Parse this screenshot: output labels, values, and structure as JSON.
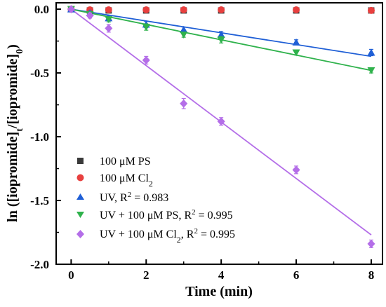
{
  "chart_data": {
    "type": "scatter",
    "xlabel": "Time (min)",
    "ylabel": {
      "prefix": "ln ([iopromide]",
      "sub1": "t",
      "middle": "/[iopromide]",
      "sub2": "0",
      "suffix": ")"
    },
    "xlim": [
      -0.4,
      8.3
    ],
    "ylim": [
      -2.0,
      0.05
    ],
    "x_ticks": [
      "0",
      "2",
      "4",
      "6",
      "8"
    ],
    "y_ticks": [
      "0.0",
      "-0.5",
      "-1.0",
      "-1.5",
      "-2.0"
    ],
    "grid": false,
    "legend_position": "lower-left",
    "series": [
      {
        "name": "100 μM PS",
        "marker": "square",
        "color": "#3a3a3a",
        "x": [
          0,
          0.5,
          1,
          2,
          3,
          4,
          6,
          8
        ],
        "y": [
          0,
          -0.01,
          -0.01,
          -0.01,
          -0.01,
          -0.01,
          -0.01,
          -0.01
        ],
        "errors": [
          0,
          0.005,
          0.005,
          0.005,
          0.005,
          0.005,
          0.005,
          0.005
        ],
        "fit": null
      },
      {
        "name": "100 μM Cl₂",
        "name_parts": {
          "main": "100 μM Cl",
          "sub": "2",
          "tail": ""
        },
        "marker": "circle",
        "color": "#e8403f",
        "x": [
          0,
          0.5,
          1,
          2,
          3,
          4,
          6,
          8
        ],
        "y": [
          0,
          -0.005,
          -0.005,
          -0.005,
          -0.005,
          -0.005,
          -0.005,
          -0.01
        ],
        "errors": [
          0,
          0.004,
          0.004,
          0.004,
          0.004,
          0.004,
          0.004,
          0.004
        ],
        "fit": null
      },
      {
        "name": "UV, R² = 0.983",
        "name_parts": {
          "main": "UV, R",
          "sup": "2",
          "tail": " = 0.983"
        },
        "marker": "triangle-up",
        "color": "#1f5fd6",
        "x": [
          0,
          0.5,
          1,
          2,
          3,
          4,
          6,
          8
        ],
        "y": [
          0,
          -0.03,
          -0.07,
          -0.12,
          -0.16,
          -0.2,
          -0.26,
          -0.34
        ],
        "errors": [
          0,
          0.015,
          0.02,
          0.025,
          0.02,
          0.025,
          0.02,
          0.025
        ],
        "fit": {
          "x0": 0,
          "y0": 0,
          "x1": 8,
          "y1": -0.37
        }
      },
      {
        "name": "UV + 100 μM PS, R² = 0.995",
        "name_parts": {
          "main": "UV + 100 μM PS, R",
          "sup": "2",
          "tail": " = 0.995"
        },
        "marker": "triangle-down",
        "color": "#2fb24c",
        "x": [
          0,
          0.5,
          1,
          2,
          3,
          4,
          6,
          8
        ],
        "y": [
          0,
          -0.04,
          -0.08,
          -0.14,
          -0.2,
          -0.24,
          -0.34,
          -0.48
        ],
        "errors": [
          0,
          0.015,
          0.02,
          0.025,
          0.02,
          0.025,
          0.02,
          0.02
        ],
        "fit": {
          "x0": 0,
          "y0": 0,
          "x1": 8,
          "y1": -0.48
        }
      },
      {
        "name": "UV + 100 μM Cl₂, R² = 0.995",
        "name_parts": {
          "main": "UV + 100 μM Cl",
          "sub": "2",
          "mid": ", R",
          "sup": "2",
          "tail": " = 0.995"
        },
        "marker": "diamond",
        "color": "#b46ee8",
        "x": [
          0,
          0.5,
          1,
          2,
          3,
          4,
          6,
          8
        ],
        "y": [
          0,
          -0.05,
          -0.15,
          -0.4,
          -0.74,
          -0.88,
          -1.26,
          -1.84
        ],
        "errors": [
          0,
          0.02,
          0.03,
          0.03,
          0.04,
          0.03,
          0.03,
          0.03
        ],
        "fit": {
          "x0": 0,
          "y0": 0,
          "x1": 8,
          "y1": -1.77
        }
      }
    ]
  }
}
